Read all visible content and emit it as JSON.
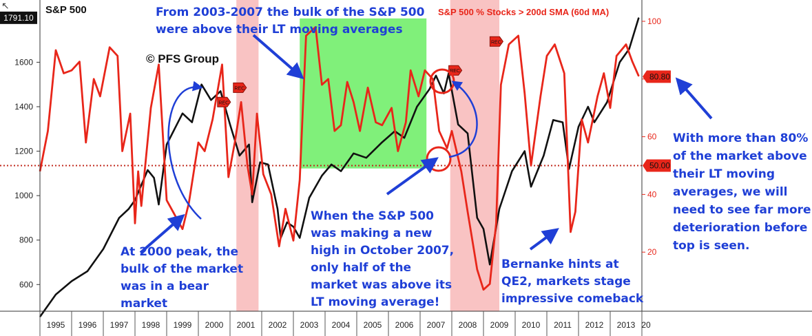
{
  "chart_data": {
    "type": "line",
    "title_left": "S&P 500",
    "title_right": "S&P 500 % Stocks > 200d SMA (60d MA)",
    "watermark": "© PFS Group",
    "x_ticks": [
      "1995",
      "1996",
      "1997",
      "1998",
      "1999",
      "2000",
      "2001",
      "2002",
      "2003",
      "2004",
      "2005",
      "2006",
      "2007",
      "2008",
      "2009",
      "2010",
      "2011",
      "2012",
      "2013",
      "20"
    ],
    "left_axis": {
      "ticks": [
        600,
        800,
        1000,
        1200,
        1400,
        1600
      ],
      "range": [
        480,
        1880
      ]
    },
    "right_axis": {
      "ticks": [
        20,
        40,
        60,
        80,
        100
      ],
      "range": [
        0,
        105
      ]
    },
    "last_value_labels": {
      "sp500": "1791.10",
      "pct_above": "80.80",
      "threshold": "50.00"
    },
    "threshold_line": 50,
    "recession_shading": [
      [
        2001.2,
        2001.9
      ],
      [
        2007.95,
        2009.5
      ]
    ],
    "highlight_box": {
      "x": [
        2003.2,
        2007.2
      ],
      "y": [
        49,
        101
      ]
    },
    "recession_markers": [
      {
        "label": "REC",
        "x": 2000.8,
        "y": 72
      },
      {
        "label": "REC",
        "x": 2001.3,
        "y": 77
      },
      {
        "label": "REC",
        "x": 2008.1,
        "y": 83
      },
      {
        "label": "REC",
        "x": 2009.4,
        "y": 93
      }
    ],
    "series": [
      {
        "name": "S&P 500",
        "color": "#111111",
        "axis": "left",
        "points": [
          [
            1995.0,
            455
          ],
          [
            1995.5,
            555
          ],
          [
            1996.0,
            615
          ],
          [
            1996.5,
            660
          ],
          [
            1997.0,
            760
          ],
          [
            1997.5,
            900
          ],
          [
            1997.8,
            940
          ],
          [
            1998.0,
            980
          ],
          [
            1998.4,
            1115
          ],
          [
            1998.6,
            1080
          ],
          [
            1998.75,
            960
          ],
          [
            1999.0,
            1230
          ],
          [
            1999.5,
            1370
          ],
          [
            1999.8,
            1330
          ],
          [
            2000.1,
            1500
          ],
          [
            2000.4,
            1430
          ],
          [
            2000.7,
            1470
          ],
          [
            2001.0,
            1320
          ],
          [
            2001.3,
            1180
          ],
          [
            2001.6,
            1230
          ],
          [
            2001.7,
            970
          ],
          [
            2001.95,
            1150
          ],
          [
            2002.2,
            1140
          ],
          [
            2002.5,
            940
          ],
          [
            2002.6,
            810
          ],
          [
            2002.8,
            880
          ],
          [
            2003.0,
            860
          ],
          [
            2003.2,
            810
          ],
          [
            2003.5,
            990
          ],
          [
            2003.9,
            1090
          ],
          [
            2004.2,
            1140
          ],
          [
            2004.5,
            1110
          ],
          [
            2004.9,
            1190
          ],
          [
            2005.3,
            1170
          ],
          [
            2005.8,
            1240
          ],
          [
            2006.2,
            1290
          ],
          [
            2006.5,
            1260
          ],
          [
            2006.9,
            1400
          ],
          [
            2007.3,
            1480
          ],
          [
            2007.5,
            1540
          ],
          [
            2007.75,
            1460
          ],
          [
            2007.9,
            1550
          ],
          [
            2008.2,
            1320
          ],
          [
            2008.5,
            1280
          ],
          [
            2008.8,
            900
          ],
          [
            2009.0,
            850
          ],
          [
            2009.2,
            690
          ],
          [
            2009.5,
            940
          ],
          [
            2009.9,
            1110
          ],
          [
            2010.3,
            1200
          ],
          [
            2010.5,
            1040
          ],
          [
            2010.9,
            1180
          ],
          [
            2011.2,
            1340
          ],
          [
            2011.5,
            1330
          ],
          [
            2011.7,
            1120
          ],
          [
            2012.0,
            1310
          ],
          [
            2012.3,
            1400
          ],
          [
            2012.5,
            1330
          ],
          [
            2012.9,
            1420
          ],
          [
            2013.3,
            1600
          ],
          [
            2013.6,
            1660
          ],
          [
            2013.9,
            1800
          ]
        ]
      },
      {
        "name": "% stocks above 200d SMA",
        "color": "#e8261a",
        "axis": "right",
        "points": [
          [
            1995.0,
            48
          ],
          [
            1995.25,
            62
          ],
          [
            1995.5,
            90
          ],
          [
            1995.75,
            82
          ],
          [
            1996.0,
            83
          ],
          [
            1996.25,
            86
          ],
          [
            1996.45,
            58
          ],
          [
            1996.7,
            80
          ],
          [
            1996.9,
            74
          ],
          [
            1997.2,
            91
          ],
          [
            1997.45,
            88
          ],
          [
            1997.6,
            55
          ],
          [
            1997.85,
            68
          ],
          [
            1998.0,
            30
          ],
          [
            1998.1,
            48
          ],
          [
            1998.2,
            36
          ],
          [
            1998.5,
            70
          ],
          [
            1998.75,
            85
          ],
          [
            1999.0,
            38
          ],
          [
            1999.3,
            32
          ],
          [
            1999.5,
            28
          ],
          [
            1999.7,
            37
          ],
          [
            2000.0,
            58
          ],
          [
            2000.2,
            55
          ],
          [
            2000.45,
            66
          ],
          [
            2000.75,
            85
          ],
          [
            2000.95,
            46
          ],
          [
            2001.15,
            58
          ],
          [
            2001.35,
            72
          ],
          [
            2001.55,
            50
          ],
          [
            2001.7,
            40
          ],
          [
            2001.85,
            68
          ],
          [
            2002.05,
            47
          ],
          [
            2002.3,
            40
          ],
          [
            2002.55,
            22
          ],
          [
            2002.75,
            35
          ],
          [
            2003.0,
            24
          ],
          [
            2003.2,
            45
          ],
          [
            2003.4,
            95
          ],
          [
            2003.7,
            98
          ],
          [
            2003.9,
            78
          ],
          [
            2004.1,
            80
          ],
          [
            2004.3,
            62
          ],
          [
            2004.5,
            64
          ],
          [
            2004.7,
            79
          ],
          [
            2004.9,
            72
          ],
          [
            2005.1,
            62
          ],
          [
            2005.35,
            77
          ],
          [
            2005.6,
            65
          ],
          [
            2005.8,
            64
          ],
          [
            2006.1,
            70
          ],
          [
            2006.3,
            55
          ],
          [
            2006.55,
            65
          ],
          [
            2006.7,
            83
          ],
          [
            2006.95,
            74
          ],
          [
            2007.15,
            83
          ],
          [
            2007.4,
            80
          ],
          [
            2007.6,
            62
          ],
          [
            2007.85,
            56
          ],
          [
            2008.0,
            62
          ],
          [
            2008.3,
            48
          ],
          [
            2008.5,
            34
          ],
          [
            2008.8,
            14
          ],
          [
            2009.0,
            7
          ],
          [
            2009.2,
            9
          ],
          [
            2009.4,
            30
          ],
          [
            2009.55,
            78
          ],
          [
            2009.8,
            92
          ],
          [
            2010.1,
            95
          ],
          [
            2010.3,
            75
          ],
          [
            2010.5,
            50
          ],
          [
            2010.8,
            74
          ],
          [
            2011.0,
            88
          ],
          [
            2011.25,
            92
          ],
          [
            2011.55,
            82
          ],
          [
            2011.75,
            27
          ],
          [
            2011.9,
            34
          ],
          [
            2012.1,
            66
          ],
          [
            2012.3,
            58
          ],
          [
            2012.6,
            74
          ],
          [
            2012.8,
            82
          ],
          [
            2013.0,
            70
          ],
          [
            2013.2,
            88
          ],
          [
            2013.5,
            92
          ],
          [
            2013.7,
            86
          ],
          [
            2013.9,
            81
          ]
        ]
      }
    ]
  },
  "annotations": {
    "top_lines": [
      "From 2003-2007 the bulk of the S&P 500",
      "were above their LT moving averages"
    ],
    "peak2000_lines": [
      "At 2000 peak, the",
      "bulk of the market",
      "was in a bear",
      "market"
    ],
    "oct2007_lines": [
      "When the S&P 500",
      "was making a new",
      "high in October 2007,",
      "only half of the",
      "market was above its",
      "LT moving average!"
    ],
    "qe2_lines": [
      "Bernanke hints at",
      "QE2, markets stage",
      "impressive comeback"
    ],
    "right_lines": [
      "With more than 80%",
      "of the market above",
      "their LT moving",
      "averages, we will",
      "need to see far more",
      "deterioration before a",
      "top is seen."
    ]
  },
  "colors": {
    "annotation_blue": "#1f3fd6",
    "arrow_blue": "#1f3fd6",
    "sp_line": "#111111",
    "pct_line": "#e8261a",
    "recession_fill": "#f8b8b8",
    "highlight_fill": "#80f07a"
  }
}
